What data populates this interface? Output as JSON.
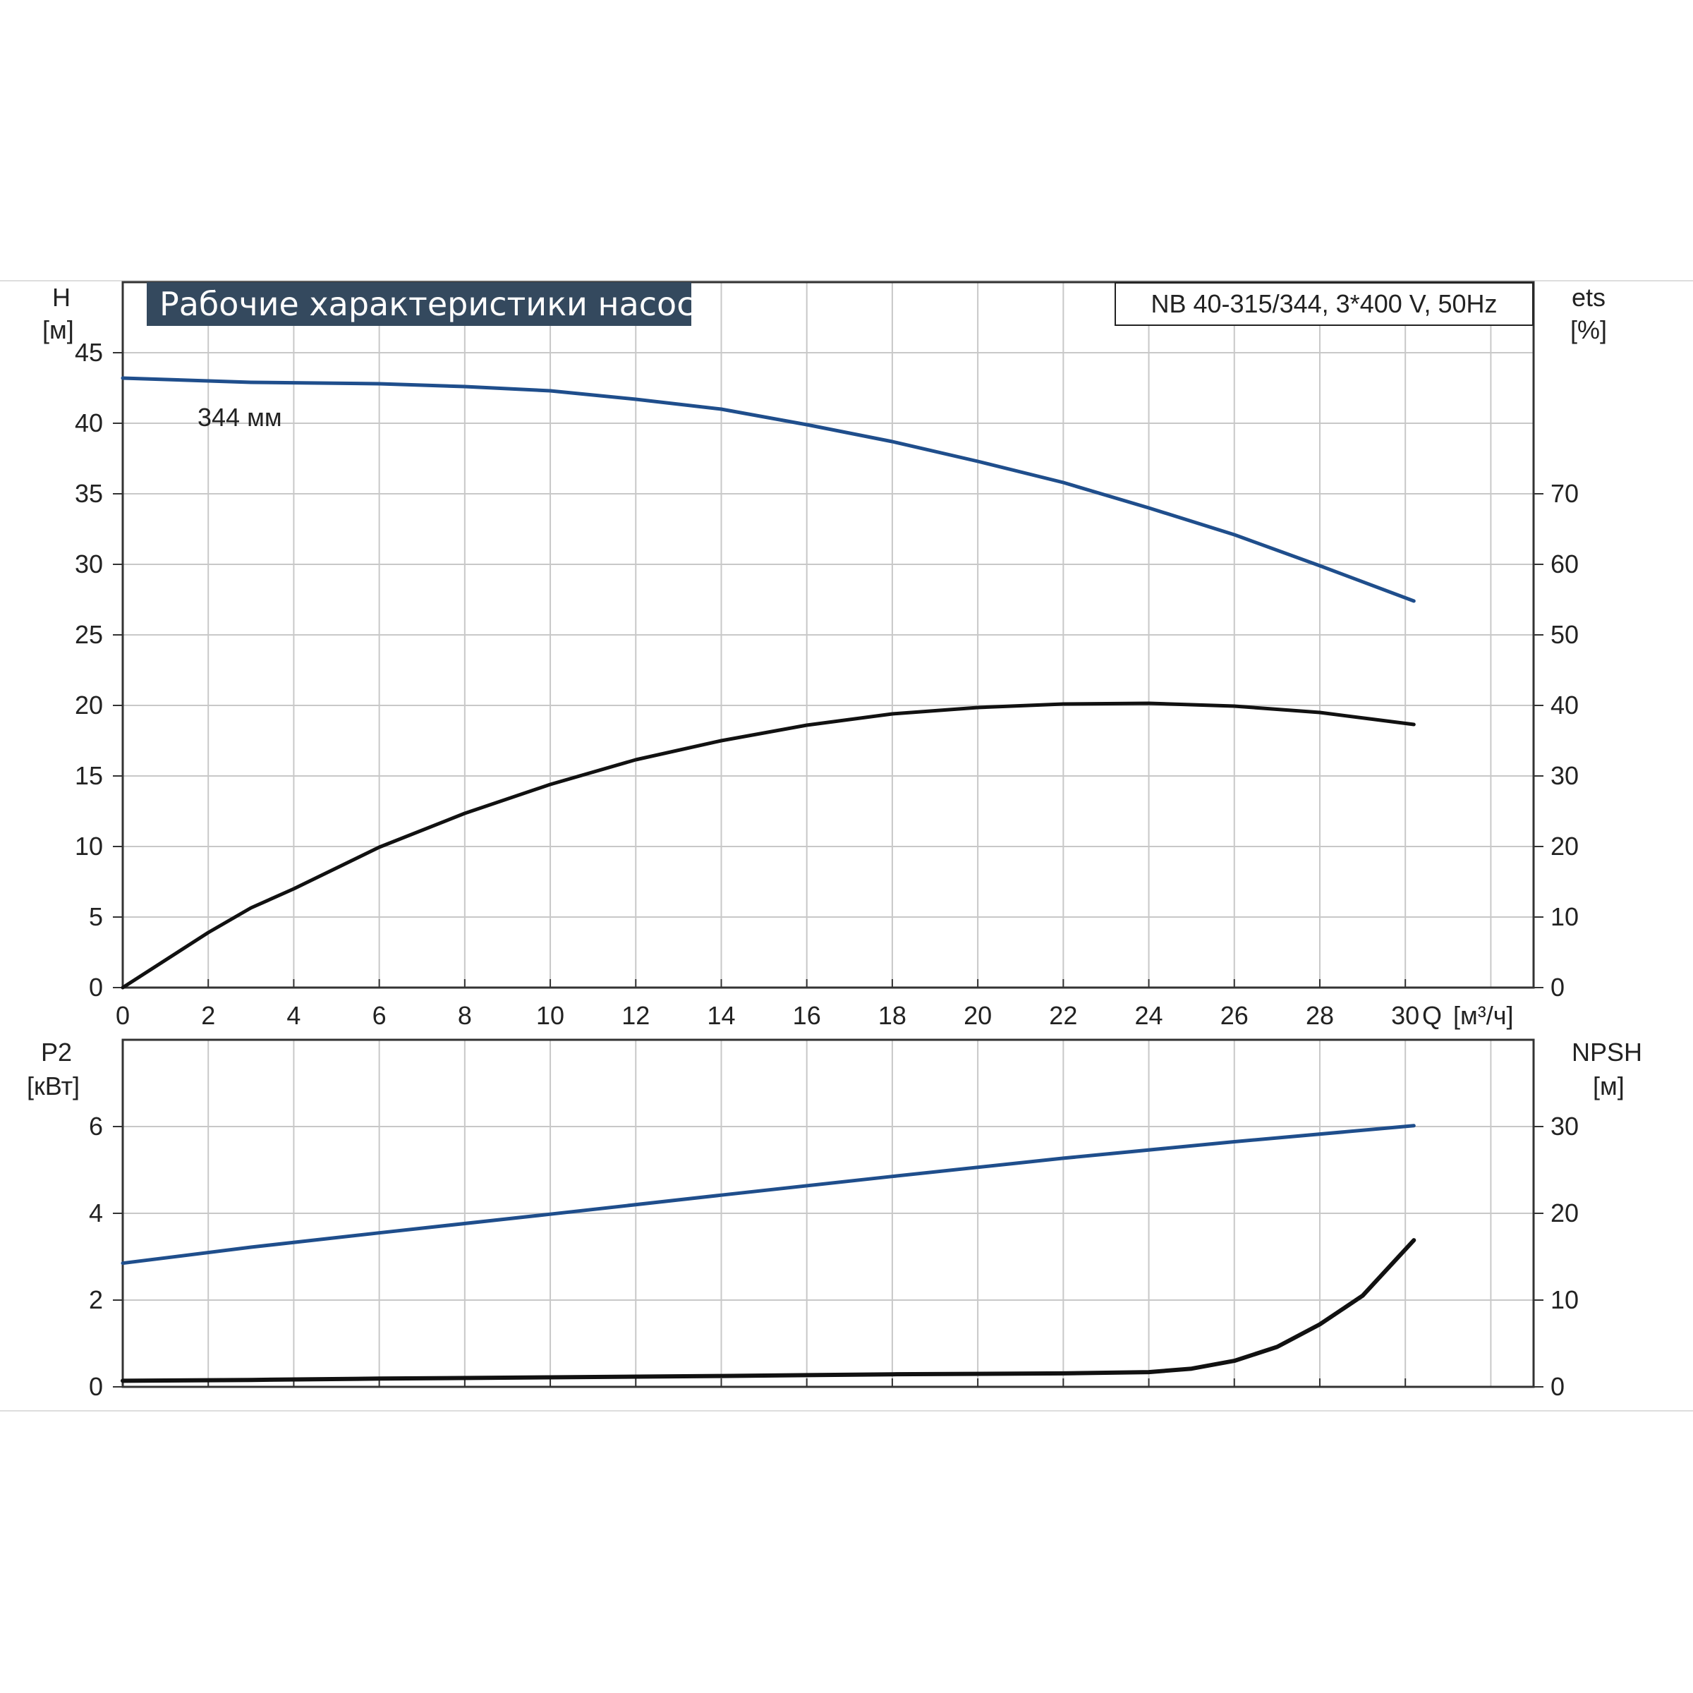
{
  "page": {
    "title": "Рабочие характеристики насоса",
    "model": "NB 40-315/344, 3*400 V, 50Hz",
    "impeller_label": "344 мм"
  },
  "axes": {
    "upper_left": {
      "name": "H",
      "unit": "[м]"
    },
    "upper_right": {
      "name": "ets",
      "unit": "[%]"
    },
    "x": {
      "name": "Q",
      "unit": "[м³/ч]"
    },
    "lower_left": {
      "name": "P2",
      "unit": "[кВт]"
    },
    "lower_right": {
      "name": "NPSH",
      "unit": "[м]"
    }
  },
  "colors": {
    "blue": "#1f4e8c",
    "black": "#111111",
    "grid": "#c8c8c8"
  },
  "chart_data": [
    {
      "type": "line",
      "panel": "upper",
      "x_ticks": [
        0,
        2,
        4,
        6,
        8,
        10,
        12,
        14,
        16,
        18,
        20,
        22,
        24,
        26,
        28,
        30
      ],
      "xlim": [
        0,
        33
      ],
      "y_left_ticks": [
        0,
        5,
        10,
        15,
        20,
        25,
        30,
        35,
        40,
        45
      ],
      "ylim_left": [
        0,
        50
      ],
      "y_right_ticks": [
        0,
        10,
        20,
        30,
        40,
        50,
        60,
        70
      ],
      "ylim_right": [
        0,
        100
      ],
      "grid": true,
      "series": [
        {
          "axis": "left",
          "color": "#1f4e8c",
          "x": [
            0,
            3,
            6,
            8,
            10,
            12,
            14,
            16,
            18,
            20,
            22,
            24,
            26,
            28,
            30.2
          ],
          "y": [
            43.2,
            42.9,
            42.8,
            42.6,
            42.3,
            41.7,
            41.0,
            39.9,
            38.7,
            37.3,
            35.8,
            34.0,
            32.1,
            29.9,
            27.4
          ]
        },
        {
          "axis": "right",
          "color": "#111111",
          "x": [
            0,
            2,
            3,
            4,
            6,
            8,
            10,
            12,
            14,
            16,
            18,
            20,
            22,
            24,
            26,
            28,
            30.2
          ],
          "y": [
            0,
            7.8,
            11.3,
            14.0,
            19.9,
            24.7,
            28.8,
            32.3,
            35.0,
            37.2,
            38.8,
            39.7,
            40.2,
            40.3,
            39.9,
            39.0,
            37.3
          ]
        }
      ]
    },
    {
      "type": "line",
      "panel": "lower",
      "x_ticks": [
        0,
        2,
        4,
        6,
        8,
        10,
        12,
        14,
        16,
        18,
        20,
        22,
        24,
        26,
        28,
        30
      ],
      "xlim": [
        0,
        33
      ],
      "y_left_ticks": [
        0,
        2,
        4,
        6
      ],
      "ylim_left": [
        0,
        8
      ],
      "y_right_ticks": [
        0,
        10,
        20,
        30
      ],
      "ylim_right": [
        0,
        40
      ],
      "grid": true,
      "series": [
        {
          "axis": "left",
          "color": "#1f4e8c",
          "x": [
            0,
            3,
            6,
            10,
            14,
            18,
            22,
            26,
            30.2
          ],
          "y": [
            2.85,
            3.22,
            3.55,
            3.98,
            4.42,
            4.85,
            5.27,
            5.65,
            6.02
          ]
        },
        {
          "axis": "right",
          "color": "#111111",
          "x": [
            0,
            3,
            6,
            10,
            14,
            18,
            22,
            24,
            25,
            26,
            27,
            28,
            29,
            30.2
          ],
          "y": [
            0.7,
            0.8,
            0.95,
            1.1,
            1.25,
            1.45,
            1.55,
            1.7,
            2.1,
            3.0,
            4.6,
            7.2,
            10.5,
            16.9
          ]
        }
      ]
    }
  ]
}
